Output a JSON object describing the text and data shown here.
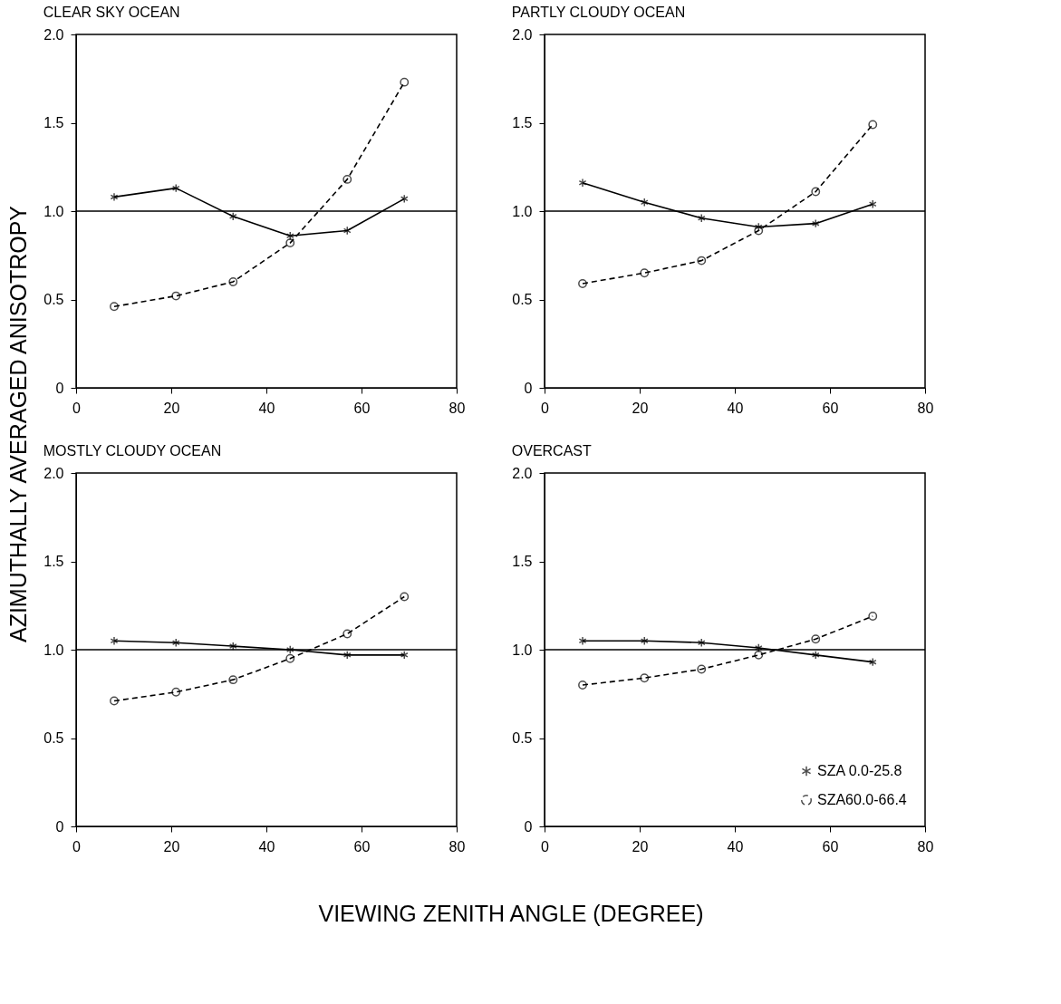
{
  "chart_data": [
    {
      "type": "line",
      "title": "CLEAR SKY OCEAN",
      "ylabel": "AZIMUTHALLY AVERAGED ANISOTROPY",
      "x": [
        8,
        21,
        33,
        45,
        57,
        69
      ],
      "xlim": [
        0,
        80
      ],
      "xticks": [
        0,
        20,
        40,
        60,
        80
      ],
      "ylim": [
        0,
        2.0
      ],
      "yticks": [
        0,
        {
          "value": 0.5,
          "label": "0.5"
        },
        {
          "value": 1,
          "label": "1.0"
        },
        {
          "value": 1.5,
          "label": "1.5"
        },
        {
          "value": 2,
          "label": "2.0"
        }
      ],
      "grid": false,
      "legend": false,
      "ref_lines": [
        {
          "axis": "y",
          "value": 1,
          "color": "#000000",
          "line_style": "solid"
        }
      ],
      "series": [
        {
          "color": "#000000",
          "marker": "cross",
          "line_style": "solid",
          "values": [
            1.08,
            1.13,
            0.97,
            0.86,
            0.89,
            1.07
          ]
        },
        {
          "color": "#000000",
          "marker": "circle",
          "line_style": "dashed",
          "values": [
            0.46,
            0.52,
            0.6,
            0.82,
            1.18,
            1.73
          ]
        }
      ]
    },
    {
      "type": "line",
      "title": "PARTLY CLOUDY OCEAN",
      "x": [
        8,
        21,
        33,
        45,
        57,
        69
      ],
      "xlim": [
        0,
        80
      ],
      "xticks": [
        0,
        20,
        40,
        60,
        80
      ],
      "ylim": [
        0,
        2.0
      ],
      "yticks": [
        0,
        {
          "value": 0.5,
          "label": "0.5"
        },
        {
          "value": 1,
          "label": "1.0"
        },
        {
          "value": 1.5,
          "label": "1.5"
        },
        {
          "value": 2,
          "label": "2.0"
        }
      ],
      "grid": false,
      "legend": false,
      "ref_lines": [
        {
          "axis": "y",
          "value": 1,
          "color": "#000000",
          "line_style": "solid"
        }
      ],
      "series": [
        {
          "color": "#000000",
          "marker": "cross",
          "line_style": "solid",
          "values": [
            1.16,
            1.05,
            0.96,
            0.91,
            0.93,
            1.04
          ]
        },
        {
          "color": "#000000",
          "marker": "circle",
          "line_style": "dashed",
          "values": [
            0.59,
            0.65,
            0.72,
            0.89,
            1.11,
            1.49
          ]
        }
      ]
    },
    {
      "type": "line",
      "title": "MOSTLY CLOUDY OCEAN",
      "xlabel": "VIEWING ZENITH ANGLE (DEGREE)",
      "x": [
        8,
        21,
        33,
        45,
        57,
        69
      ],
      "xlim": [
        0,
        80
      ],
      "xticks": [
        0,
        20,
        40,
        60,
        80
      ],
      "ylim": [
        0,
        2.0
      ],
      "yticks": [
        0,
        {
          "value": 0.5,
          "label": "0.5"
        },
        {
          "value": 1,
          "label": "1.0"
        },
        {
          "value": 1.5,
          "label": "1.5"
        },
        {
          "value": 2,
          "label": "2.0"
        }
      ],
      "grid": false,
      "legend": false,
      "ref_lines": [
        {
          "axis": "y",
          "value": 1,
          "color": "#000000",
          "line_style": "solid"
        }
      ],
      "series": [
        {
          "color": "#000000",
          "marker": "cross",
          "line_style": "solid",
          "values": [
            1.05,
            1.04,
            1.02,
            1.0,
            0.97,
            0.97
          ]
        },
        {
          "color": "#000000",
          "marker": "circle",
          "line_style": "dashed",
          "values": [
            0.71,
            0.76,
            0.83,
            0.95,
            1.09,
            1.3
          ]
        }
      ]
    },
    {
      "type": "line",
      "title": "OVERCAST",
      "x": [
        8,
        21,
        33,
        45,
        57,
        69
      ],
      "xlim": [
        0,
        80
      ],
      "xticks": [
        0,
        20,
        40,
        60,
        80
      ],
      "ylim": [
        0,
        2.0
      ],
      "yticks": [
        0,
        {
          "value": 0.5,
          "label": "0.5"
        },
        {
          "value": 1,
          "label": "1.0"
        },
        {
          "value": 1.5,
          "label": "1.5"
        },
        {
          "value": 2,
          "label": "2.0"
        }
      ],
      "grid": false,
      "legend": "bottom right",
      "ref_lines": [
        {
          "axis": "y",
          "value": 1,
          "color": "#000000",
          "line_style": "solid"
        }
      ],
      "series": [
        {
          "name": "SZA 0.0-25.8",
          "color": "#000000",
          "marker": "cross",
          "line_style": "solid",
          "values": [
            1.05,
            1.05,
            1.04,
            1.01,
            0.97,
            0.93
          ]
        },
        {
          "name": "SZA60.0-66.4",
          "color": "#000000",
          "marker": "circle",
          "line_style": "dashed",
          "values": [
            0.8,
            0.84,
            0.89,
            0.97,
            1.06,
            1.19
          ]
        }
      ]
    }
  ]
}
